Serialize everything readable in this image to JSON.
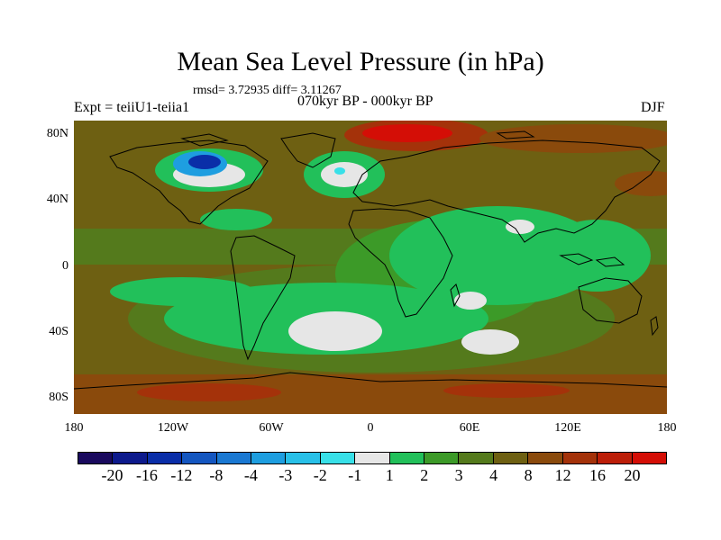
{
  "title": "Mean Sea Level Pressure (in hPa)",
  "stats": "rmsd= 3.72935 diff= 3.11267",
  "period": "070kyr BP - 000kyr BP",
  "experiment": "Expt = teiiU1-teiia1",
  "season": "DJF",
  "lat_labels": [
    "80N",
    "40N",
    "0",
    "40S",
    "80S"
  ],
  "lon_labels": [
    "180",
    "120W",
    "60W",
    "0",
    "60E",
    "120E",
    "180"
  ],
  "colorbar": {
    "labels": [
      "-20",
      "-16",
      "-12",
      "-8",
      "-4",
      "-3",
      "-2",
      "-1",
      "1",
      "2",
      "3",
      "4",
      "8",
      "12",
      "16",
      "20"
    ],
    "colors": [
      "#1a0a5e",
      "#0d1a8c",
      "#0a2ea8",
      "#1456c0",
      "#1a78d2",
      "#1e9ee0",
      "#28c0e8",
      "#38e0e8",
      "#e6e6e6",
      "#22c05a",
      "#3c9a28",
      "#547a1c",
      "#6e6012",
      "#8a4a0c",
      "#a4320a",
      "#bc1e08",
      "#d40e06"
    ]
  },
  "colors": {
    "background_field": "#6e6012",
    "land_outline": "#000000"
  }
}
